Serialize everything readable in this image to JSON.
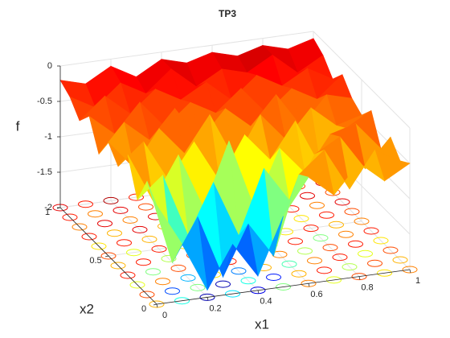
{
  "chart_data": {
    "type": "surface",
    "title": "TP3",
    "xlabel": "x1",
    "ylabel": "x2",
    "zlabel": "f",
    "colormap": "jet",
    "grid": true,
    "x1": [
      0,
      0.1,
      0.2,
      0.3,
      0.4,
      0.5,
      0.6,
      0.7,
      0.8,
      0.9,
      1
    ],
    "x2": [
      0,
      0.1,
      0.2,
      0.3,
      0.4,
      0.5,
      0.6,
      0.7,
      0.8,
      0.9,
      1
    ],
    "z": [
      [
        -0.6,
        -1.2,
        -1.9,
        -1.3,
        -1.8,
        -1.0,
        -0.5,
        -0.8,
        -0.4,
        -0.7,
        -0.5
      ],
      [
        -0.4,
        -1.6,
        -1.0,
        -1.9,
        -1.2,
        -1.7,
        -0.6,
        -0.3,
        -0.9,
        -0.4,
        -0.6
      ],
      [
        -0.8,
        -0.5,
        -1.4,
        -0.7,
        -1.5,
        -0.6,
        -1.1,
        -0.5,
        -0.3,
        -0.8,
        -0.4
      ],
      [
        -0.3,
        -1.0,
        -0.4,
        -1.2,
        -0.3,
        -1.3,
        -0.5,
        -0.9,
        -0.4,
        -0.3,
        -0.7
      ],
      [
        -0.6,
        -0.3,
        -0.9,
        -0.4,
        -1.0,
        -0.4,
        -0.8,
        -0.3,
        -1.0,
        -0.5,
        -0.3
      ],
      [
        -0.4,
        -0.8,
        -0.3,
        -0.7,
        -0.2,
        -0.9,
        -0.3,
        -0.7,
        -0.3,
        -0.6,
        -0.5
      ],
      [
        -0.7,
        -0.3,
        -0.6,
        -0.2,
        -0.7,
        -0.3,
        -0.6,
        -0.2,
        -0.7,
        -0.3,
        -0.4
      ],
      [
        -0.3,
        -0.6,
        -0.2,
        -0.6,
        -0.3,
        -0.5,
        -0.2,
        -0.6,
        -0.3,
        -0.5,
        -0.2
      ],
      [
        -0.5,
        -0.2,
        -0.5,
        -0.2,
        -0.4,
        -0.2,
        -0.5,
        -0.2,
        -0.4,
        -0.2,
        -0.4
      ],
      [
        -0.3,
        -0.5,
        -0.2,
        -0.4,
        -0.1,
        -0.4,
        -0.2,
        -0.3,
        -0.1,
        -0.4,
        -0.2
      ],
      [
        -0.2,
        -0.3,
        -0.1,
        -0.3,
        -0.1,
        -0.2,
        -0.1,
        -0.2,
        -0.1,
        -0.2,
        -0.1
      ]
    ],
    "xlim": [
      0,
      1
    ],
    "ylim": [
      0,
      1
    ],
    "zlim": [
      -2,
      0
    ],
    "xticks": [
      0,
      0.2,
      0.4,
      0.6,
      0.8,
      1
    ],
    "yticks": [
      0,
      0.5,
      1
    ],
    "zticks": [
      -2,
      -1.5,
      -1,
      -0.5,
      0
    ]
  }
}
